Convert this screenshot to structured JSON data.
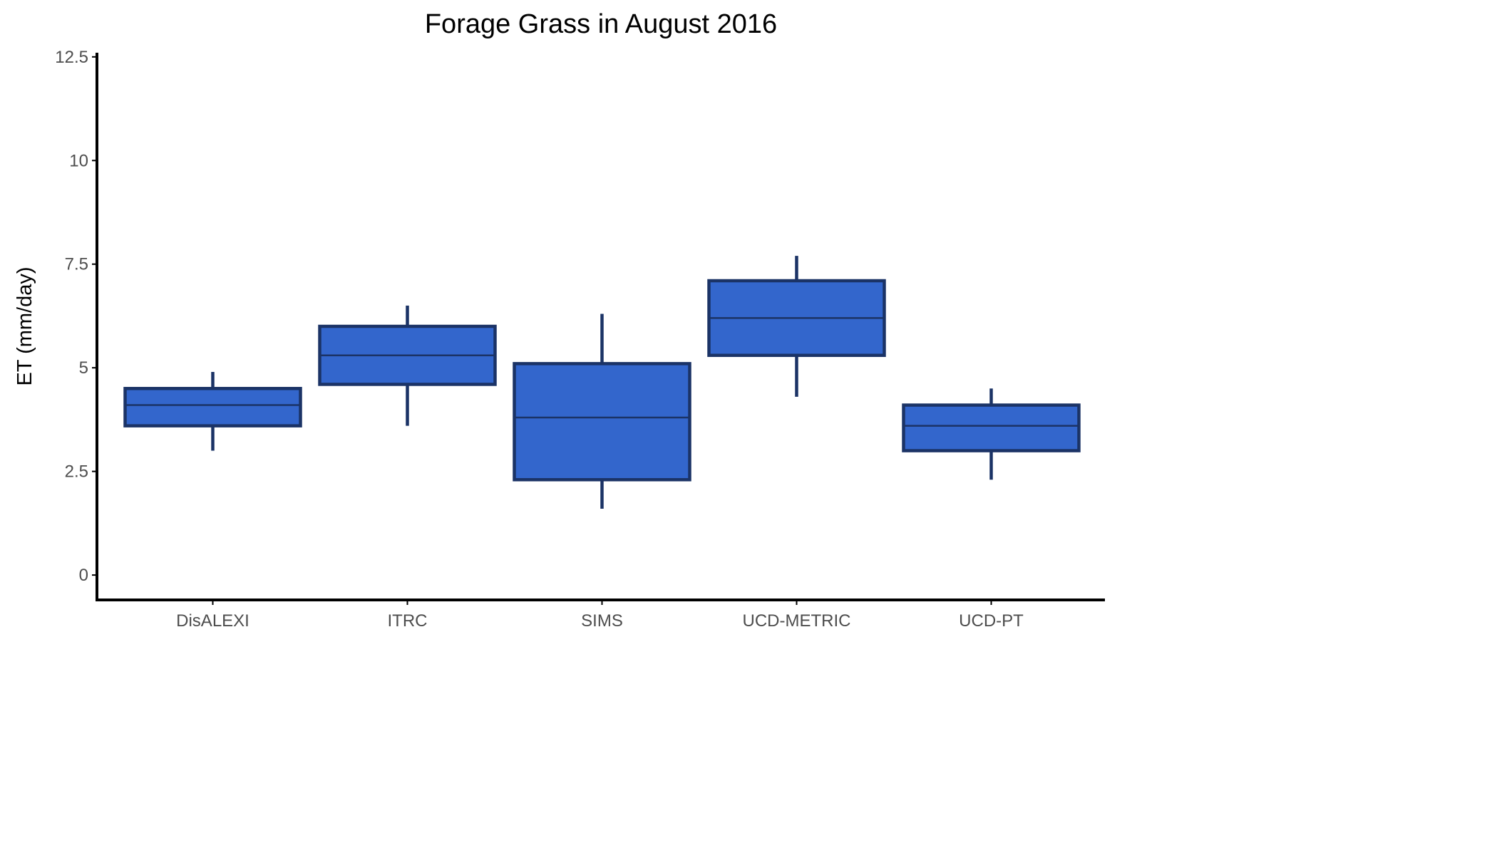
{
  "chart_data": {
    "type": "box",
    "title": "Forage Grass in August 2016",
    "xlabel": "",
    "ylabel": "ET (mm/day)",
    "ylim": [
      -0.6,
      12.6
    ],
    "yticks": [
      0,
      2.5,
      5,
      7.5,
      10,
      12.5
    ],
    "ytick_labels": [
      "0",
      "2.5",
      "5",
      "7.5",
      "10",
      "12.5"
    ],
    "categories": [
      "DisALEXI",
      "ITRC",
      "SIMS",
      "UCD-METRIC",
      "UCD-PT"
    ],
    "boxes": [
      {
        "category": "DisALEXI",
        "whisker_low": 3.0,
        "q1": 3.6,
        "median": 4.1,
        "q3": 4.5,
        "whisker_high": 4.9
      },
      {
        "category": "ITRC",
        "whisker_low": 3.6,
        "q1": 4.6,
        "median": 5.3,
        "q3": 6.0,
        "whisker_high": 6.5
      },
      {
        "category": "SIMS",
        "whisker_low": 1.6,
        "q1": 2.3,
        "median": 3.8,
        "q3": 5.1,
        "whisker_high": 6.3
      },
      {
        "category": "UCD-METRIC",
        "whisker_low": 4.3,
        "q1": 5.3,
        "median": 6.2,
        "q3": 7.1,
        "whisker_high": 7.7
      },
      {
        "category": "UCD-PT",
        "whisker_low": 2.3,
        "q1": 3.0,
        "median": 3.6,
        "q3": 4.1,
        "whisker_high": 4.5
      }
    ],
    "legend": "none",
    "grid": false,
    "colors": {
      "box_fill": "#3366cc",
      "box_outline": "#1b3366",
      "axis": "#000000",
      "tick_text": "#4d4d4d",
      "text": "#000000"
    }
  }
}
